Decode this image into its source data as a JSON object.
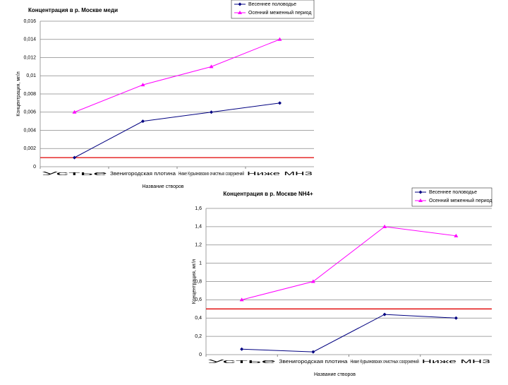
{
  "chart_data": [
    {
      "type": "line",
      "title": "Концентрация в р. Москве меди",
      "x_label": "Название створов",
      "y_label": "Концентрация, мг/л",
      "categories": [
        "Устье",
        "Звенигородская плотина",
        "Ниже Курьяновских очистных сооружений",
        "Ниже МНЗ"
      ],
      "series": [
        {
          "name": "Весеннее половодье",
          "color": "#000080",
          "marker": "diamond",
          "values": [
            0.001,
            0.005,
            0.006,
            0.007
          ]
        },
        {
          "name": "Осенний меженный период",
          "color": "#ff00ff",
          "marker": "triangle",
          "values": [
            0.006,
            0.009,
            0.011,
            0.014
          ]
        }
      ],
      "reference_line": {
        "value": 0.001,
        "color": "#e00000"
      },
      "ylim": [
        0,
        0.016
      ],
      "yticks": [
        0,
        {
          "value": 0.002,
          "label": "0,002"
        },
        {
          "value": 0.004,
          "label": "0,004"
        },
        {
          "value": 0.006,
          "label": "0,006"
        },
        {
          "value": 0.008,
          "label": "0,008"
        },
        {
          "value": 0.01,
          "label": "0,01"
        },
        {
          "value": 0.012,
          "label": "0,012"
        },
        {
          "value": 0.014,
          "label": "0,014"
        },
        {
          "value": 0.016,
          "label": "0,016"
        }
      ],
      "grid": true,
      "legend": "top-right"
    },
    {
      "type": "line",
      "title": "Концентрация в р. Москве NH4+",
      "x_label": "Название створов",
      "y_label": "Концентрация, мг/л",
      "categories": [
        "Устье",
        "Звенигородская плотина",
        "Ниже Курьяновских очистных сооружений",
        "Ниже МНЗ"
      ],
      "series": [
        {
          "name": "Весеннее половодье",
          "color": "#000080",
          "marker": "diamond",
          "values": [
            0.06,
            0.03,
            0.44,
            0.4
          ]
        },
        {
          "name": "Осенний меженный период",
          "color": "#ff00ff",
          "marker": "triangle",
          "values": [
            0.6,
            0.8,
            1.4,
            1.3
          ]
        }
      ],
      "reference_line": {
        "value": 0.5,
        "color": "#e00000"
      },
      "ylim": [
        0,
        1.6
      ],
      "yticks": [
        0,
        {
          "value": 0.2,
          "label": "0,2"
        },
        {
          "value": 0.4,
          "label": "0,4"
        },
        {
          "value": 0.6,
          "label": "0,6"
        },
        {
          "value": 0.8,
          "label": "0,8"
        },
        1,
        {
          "value": 1.2,
          "label": "1,2"
        },
        {
          "value": 1.4,
          "label": "1,4"
        },
        {
          "value": 1.6,
          "label": "1,6"
        }
      ],
      "grid": true,
      "legend": "top-right"
    }
  ]
}
